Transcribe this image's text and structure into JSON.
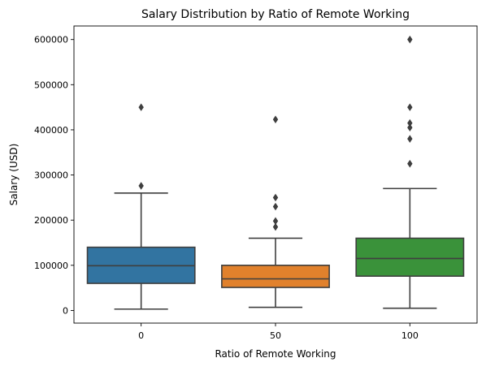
{
  "chart_data": {
    "type": "box",
    "title": "Salary Distribution by Ratio of Remote Working",
    "xlabel": "Ratio of Remote Working",
    "ylabel": "Salary (USD)",
    "categories": [
      "0",
      "50",
      "100"
    ],
    "ylim": [
      -28000,
      630000
    ],
    "yticks": [
      0,
      100000,
      200000,
      300000,
      400000,
      500000,
      600000
    ],
    "ytick_labels": [
      "0",
      "100000",
      "200000",
      "300000",
      "400000",
      "500000",
      "600000"
    ],
    "grid": false,
    "legend": "none",
    "boxes": [
      {
        "category": "0",
        "color": "#3274a1",
        "whisker_low": 3000,
        "q1": 60000,
        "median": 99000,
        "q3": 140000,
        "whisker_high": 260000,
        "outliers": [
          276000,
          450000
        ]
      },
      {
        "category": "50",
        "color": "#e1812c",
        "whisker_low": 7000,
        "q1": 51000,
        "median": 70000,
        "q3": 100000,
        "whisker_high": 160000,
        "outliers": [
          185000,
          198000,
          230000,
          250000,
          423000
        ]
      },
      {
        "category": "100",
        "color": "#3a923a",
        "whisker_low": 5000,
        "q1": 76000,
        "median": 115000,
        "q3": 160000,
        "whisker_high": 270000,
        "outliers": [
          325000,
          380000,
          405000,
          415000,
          450000,
          600000
        ]
      }
    ]
  }
}
